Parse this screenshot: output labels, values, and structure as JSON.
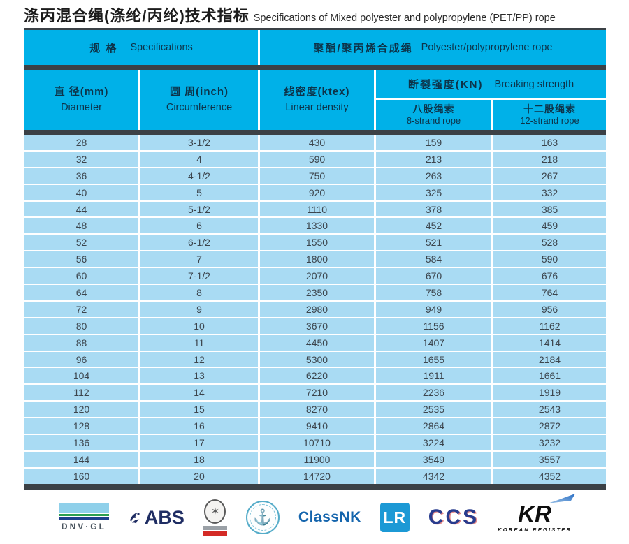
{
  "title": {
    "zh": "涤丙混合绳(涤纶/丙纶)技术指标",
    "en": "Specifications of Mixed polyester and polypropylene (PET/PP) rope"
  },
  "table": {
    "header1": {
      "specs_zh": "规 格",
      "specs_en": "Specifications",
      "rope_zh": "聚酯/聚丙烯合成绳",
      "rope_en": "Polyester/polypropylene rope"
    },
    "header2": {
      "diameter_zh": "直 径(mm)",
      "diameter_en": "Diameter",
      "circumference_zh": "圆 周(inch)",
      "circumference_en": "Circumference",
      "linear_density_zh": "线密度(ktex)",
      "linear_density_en": "Linear density",
      "breaking_zh": "断裂强度(KN)",
      "breaking_en": "Breaking strength",
      "strand8_zh": "八股绳索",
      "strand8_en": "8-strand rope",
      "strand12_zh": "十二股绳索",
      "strand12_en": "12-strand rope"
    },
    "columns": [
      "diameter",
      "circumference",
      "linear-density",
      "strength-8strand",
      "strength-12strand"
    ],
    "rows": [
      [
        "28",
        "3-1/2",
        "430",
        "159",
        "163"
      ],
      [
        "32",
        "4",
        "590",
        "213",
        "218"
      ],
      [
        "36",
        "4-1/2",
        "750",
        "263",
        "267"
      ],
      [
        "40",
        "5",
        "920",
        "325",
        "332"
      ],
      [
        "44",
        "5-1/2",
        "1110",
        "378",
        "385"
      ],
      [
        "48",
        "6",
        "1330",
        "452",
        "459"
      ],
      [
        "52",
        "6-1/2",
        "1550",
        "521",
        "528"
      ],
      [
        "56",
        "7",
        "1800",
        "584",
        "590"
      ],
      [
        "60",
        "7-1/2",
        "2070",
        "670",
        "676"
      ],
      [
        "64",
        "8",
        "2350",
        "758",
        "764"
      ],
      [
        "72",
        "9",
        "2980",
        "949",
        "956"
      ],
      [
        "80",
        "10",
        "3670",
        "1156",
        "1162"
      ],
      [
        "88",
        "11",
        "4450",
        "1407",
        "1414"
      ],
      [
        "96",
        "12",
        "5300",
        "1655",
        "2184"
      ],
      [
        "104",
        "13",
        "6220",
        "1911",
        "1661"
      ],
      [
        "112",
        "14",
        "7210",
        "2236",
        "1919"
      ],
      [
        "120",
        "15",
        "8270",
        "2535",
        "2543"
      ],
      [
        "128",
        "16",
        "9410",
        "2864",
        "2872"
      ],
      [
        "136",
        "17",
        "10710",
        "3224",
        "3232"
      ],
      [
        "144",
        "18",
        "11900",
        "3549",
        "3557"
      ],
      [
        "160",
        "20",
        "14720",
        "4342",
        "4352"
      ]
    ]
  },
  "colors": {
    "header_cyan": "#00b1e8",
    "row_blue": "#a9dbf3",
    "dark_bar": "#3b4146",
    "header_text": "#0d3349",
    "data_text": "#3c454d"
  },
  "logos": {
    "dnvgl": {
      "label": "DNV·GL"
    },
    "abs": {
      "label": "ABS",
      "eagle_glyph": "✦"
    },
    "seal": {
      "glyph": "✶"
    },
    "tealseal": {
      "glyph": "⚓"
    },
    "classnk": {
      "label": "ClassNK"
    },
    "lr": {
      "label": "LR"
    },
    "ccs": {
      "label": "CCS"
    },
    "kr": {
      "label": "KR",
      "sub": "KOREAN REGISTER"
    }
  }
}
